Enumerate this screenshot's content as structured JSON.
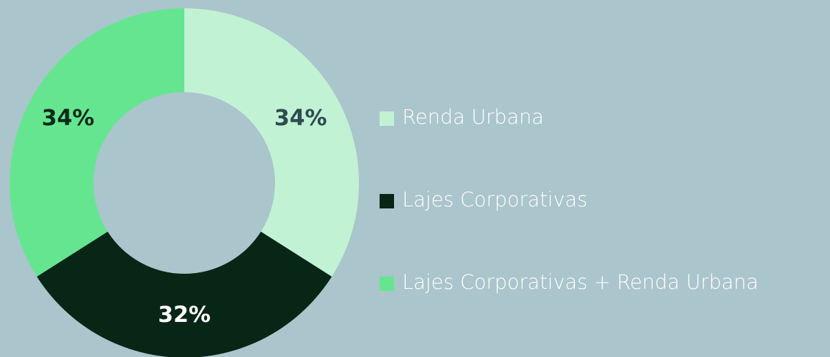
{
  "chart_data": {
    "type": "donut",
    "categories": [
      "Renda Urbana",
      "Lajes Corporativas",
      "Lajes Corporativas + Renda Urbana"
    ],
    "values": [
      34,
      32,
      34
    ],
    "value_labels": [
      "34%",
      "32%",
      "34%"
    ],
    "colors": [
      "#c1f2d4",
      "#072616",
      "#66e591"
    ],
    "legend": "right"
  }
}
